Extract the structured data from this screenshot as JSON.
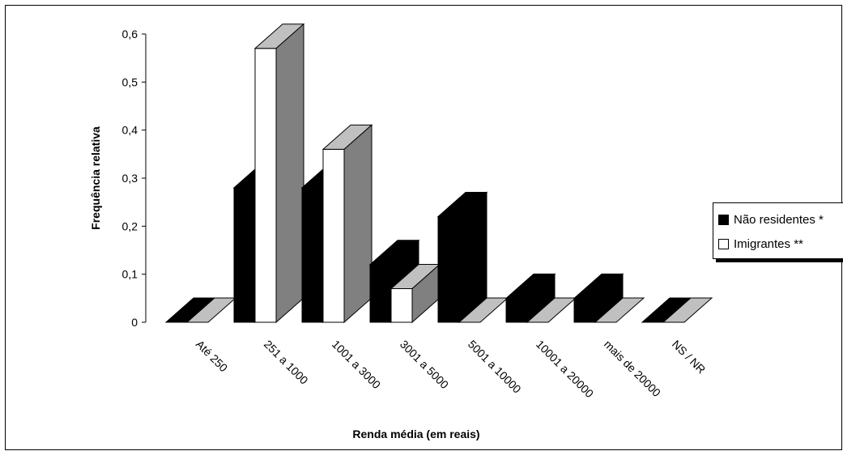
{
  "chart_data": {
    "type": "bar",
    "ylabel": "Frequência relativa",
    "xlabel": "Renda média (em reais)",
    "ylim": [
      0,
      0.6
    ],
    "yticks": [
      "0",
      "0,1",
      "0,2",
      "0,3",
      "0,4",
      "0,5",
      "0,6"
    ],
    "categories": [
      "Até 250",
      "251 a 1000",
      "1001 a 3000",
      "3001 a 5000",
      "5001 a 10000",
      "10001 a 20000",
      "mais de 20000",
      "NS / NR"
    ],
    "series": [
      {
        "name": "Não residentes *",
        "values": [
          0,
          0.28,
          0.28,
          0.12,
          0.22,
          0.05,
          0.05,
          0
        ],
        "color": "#000000"
      },
      {
        "name": "Imigrantes **",
        "values": [
          0,
          0.57,
          0.36,
          0.07,
          0,
          0,
          0,
          0
        ],
        "color": "#ffffff"
      }
    ],
    "legend_position": "right",
    "grid": false
  }
}
